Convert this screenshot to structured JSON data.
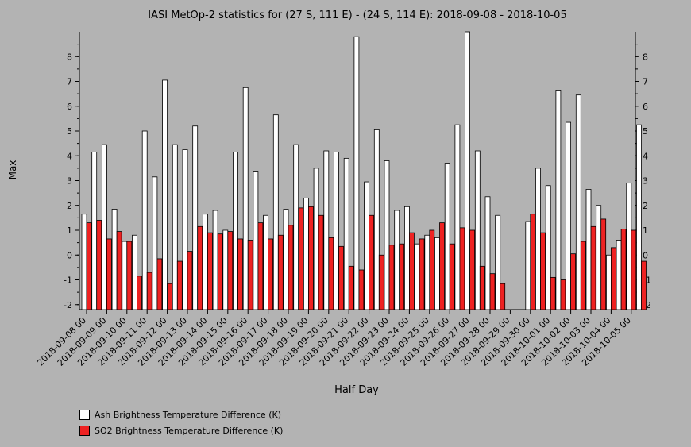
{
  "chart_data": {
    "type": "bar",
    "title": "IASI MetOp-2 statistics for (27 S, 111 E) - (24 S, 114 E): 2018-09-08 - 2018-10-05",
    "xlabel": "Half Day",
    "ylabel": "Max",
    "ylim": [
      -2.2,
      9.0
    ],
    "yticks": [
      -2,
      -1,
      0,
      1,
      2,
      3,
      4,
      5,
      6,
      7,
      8
    ],
    "xtick_labels": [
      "2018-09-08 00",
      "2018-09-09 00",
      "2018-09-10 00",
      "2018-09-11 00",
      "2018-09-12 00",
      "2018-09-13 00",
      "2018-09-14 00",
      "2018-09-15 00",
      "2018-09-16 00",
      "2018-09-17 00",
      "2018-09-18 00",
      "2018-09-19 00",
      "2018-09-20 00",
      "2018-09-21 00",
      "2018-09-22 00",
      "2018-09-23 00",
      "2018-09-24 00",
      "2018-09-25 00",
      "2018-09-26 00",
      "2018-09-27 00",
      "2018-09-28 00",
      "2018-09-29 00",
      "2018-09-30 00",
      "2018-10-01 00",
      "2018-10-02 00",
      "2018-10-03 00",
      "2018-10-04 00",
      "2018-10-05 00"
    ],
    "bins_per_day": 2,
    "series": [
      {
        "name": "Ash Brightness Temperature Difference (K)",
        "color": "#ffffff",
        "values": [
          1.65,
          4.15,
          4.45,
          1.85,
          0.55,
          0.8,
          5.0,
          3.15,
          7.05,
          4.45,
          4.25,
          5.2,
          1.65,
          1.8,
          1.0,
          4.15,
          6.75,
          3.35,
          1.6,
          5.65,
          1.85,
          4.45,
          2.3,
          3.5,
          4.2,
          4.15,
          3.9,
          8.8,
          2.95,
          5.05,
          3.8,
          1.8,
          1.95,
          0.45,
          0.8,
          0.7,
          3.7,
          5.25,
          9.0,
          4.2,
          2.35,
          1.6,
          null,
          null,
          1.35,
          3.5,
          2.8,
          6.65,
          5.35,
          6.45,
          2.65,
          2.0,
          0.0,
          0.6,
          2.9,
          5.25
        ]
      },
      {
        "name": "SO2 Brightness Temperature Difference (K)",
        "color": "#ee2222",
        "values": [
          1.3,
          1.4,
          0.65,
          0.95,
          0.55,
          -0.85,
          -0.7,
          -0.15,
          -1.15,
          -0.25,
          0.15,
          1.15,
          0.9,
          0.85,
          0.95,
          0.65,
          0.6,
          1.3,
          0.65,
          0.8,
          1.2,
          1.9,
          1.95,
          1.6,
          0.7,
          0.35,
          -0.45,
          -0.6,
          1.6,
          0.0,
          0.4,
          0.45,
          0.9,
          0.65,
          1.0,
          1.3,
          0.45,
          1.1,
          1.0,
          -0.45,
          -0.75,
          -1.15,
          null,
          null,
          1.65,
          0.9,
          -0.9,
          -1.0,
          0.05,
          0.55,
          1.15,
          1.45,
          0.3,
          1.05,
          1.0,
          -0.25
        ]
      }
    ],
    "legend": "bottom-left"
  }
}
